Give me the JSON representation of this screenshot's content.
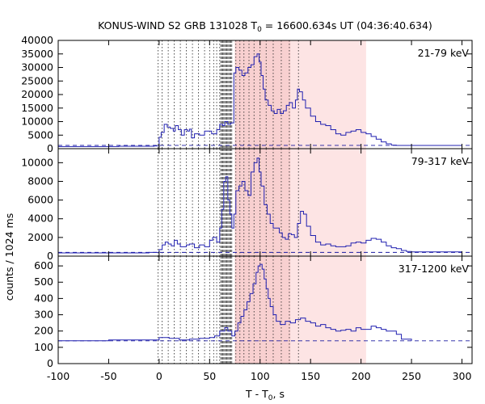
{
  "chart_data": {
    "type": "line",
    "title_main": "KONUS-WIND S2 GRB 131028 T",
    "title_sub": "0",
    "title_rest": " = 16600.634s UT (04:36:40.634)",
    "xlabel_main": "T - T",
    "xlabel_sub": "0",
    "xlabel_rest": ", s",
    "ylabel": "counts / 1024 ms",
    "xlim": [
      -100,
      310
    ],
    "x_ticks": [
      -100,
      -50,
      0,
      50,
      100,
      150,
      200,
      250,
      300
    ],
    "shaded_interval": [
      75,
      205
    ],
    "shaded_interval_dense": [
      75,
      130
    ],
    "dense_lines_range": [
      61,
      72
    ],
    "dotted_lines_x": [
      -1,
      3,
      9,
      15,
      21,
      27,
      33,
      39,
      45,
      50,
      54,
      57,
      60,
      76,
      80,
      84,
      89,
      94,
      100,
      106,
      113,
      121,
      129,
      138
    ],
    "colors": {
      "line": "#2020b0",
      "shade": "#fde4e4",
      "shade_dense": "#f8d0d0",
      "dash": "#1a1aa0"
    },
    "panels": [
      {
        "band": "21-79 keV",
        "ylim": [
          0,
          40000
        ],
        "y_ticks": [
          0,
          5000,
          10000,
          15000,
          20000,
          25000,
          30000,
          35000,
          40000
        ],
        "background": 1200,
        "x": [
          -100,
          -40,
          -5,
          0,
          2,
          5,
          8,
          11,
          14,
          16,
          19,
          22,
          25,
          28,
          30,
          32,
          35,
          40,
          45,
          52,
          57,
          60,
          63,
          65,
          68,
          71,
          74,
          76,
          79,
          82,
          85,
          88,
          91,
          94,
          97,
          99,
          101,
          103,
          105,
          108,
          111,
          114,
          117,
          120,
          123,
          126,
          129,
          132,
          135,
          137,
          139,
          142,
          145,
          150,
          155,
          160,
          165,
          170,
          175,
          180,
          185,
          190,
          195,
          200,
          205,
          210,
          215,
          220,
          225,
          230,
          235,
          240,
          245,
          250,
          260,
          300
        ],
        "values": [
          800,
          900,
          1000,
          4200,
          6000,
          9000,
          8000,
          7500,
          6500,
          8500,
          7000,
          5000,
          7000,
          6500,
          7200,
          4000,
          5500,
          5000,
          6500,
          5500,
          7000,
          9000,
          8500,
          10000,
          9000,
          9500,
          28000,
          30000,
          29000,
          27000,
          28000,
          30000,
          31000,
          34000,
          35000,
          32000,
          27000,
          22000,
          18000,
          16000,
          14000,
          13000,
          14500,
          13000,
          14000,
          16000,
          17000,
          15000,
          18000,
          22000,
          21000,
          18000,
          15000,
          12000,
          10000,
          9000,
          8500,
          7000,
          5500,
          5000,
          6000,
          6500,
          7000,
          6000,
          5500,
          4500,
          3500,
          2500,
          1800,
          1300,
          1200,
          1200,
          1200,
          1200,
          1200,
          1200
        ]
      },
      {
        "band": "79-317 keV",
        "ylim": [
          0,
          11500
        ],
        "y_ticks": [
          0,
          2000,
          4000,
          6000,
          8000,
          10000
        ],
        "background": 400,
        "x": [
          -100,
          -10,
          0,
          3,
          6,
          9,
          12,
          15,
          18,
          21,
          24,
          27,
          30,
          35,
          40,
          45,
          50,
          53,
          57,
          60,
          62,
          64,
          66,
          68,
          70,
          72,
          74,
          76,
          79,
          82,
          85,
          88,
          91,
          94,
          97,
          99,
          101,
          104,
          107,
          110,
          113,
          116,
          119,
          122,
          125,
          128,
          131,
          134,
          137,
          140,
          143,
          146,
          150,
          155,
          160,
          165,
          170,
          175,
          180,
          185,
          190,
          195,
          200,
          205,
          210,
          215,
          220,
          225,
          230,
          235,
          240,
          245,
          250,
          300
        ],
        "values": [
          350,
          400,
          700,
          1200,
          1500,
          1300,
          1100,
          1700,
          1300,
          1000,
          1000,
          1200,
          1300,
          900,
          1200,
          1000,
          1700,
          2000,
          1500,
          3000,
          5000,
          8000,
          8500,
          6000,
          4500,
          3000,
          4500,
          7000,
          7500,
          8000,
          7000,
          6500,
          9000,
          10000,
          10500,
          9000,
          7500,
          5500,
          4500,
          3500,
          3000,
          3000,
          2500,
          2000,
          1800,
          2400,
          2300,
          2000,
          3500,
          4800,
          4500,
          3200,
          2200,
          1500,
          1200,
          1300,
          1100,
          1000,
          1000,
          1100,
          1400,
          1500,
          1400,
          1700,
          1900,
          1800,
          1500,
          1100,
          900,
          800,
          600,
          500,
          450,
          400
        ]
      },
      {
        "band": "317-1200 keV",
        "ylim": [
          0,
          660
        ],
        "y_ticks": [
          0,
          100,
          200,
          300,
          400,
          500,
          600
        ],
        "background": 140,
        "x": [
          -100,
          -50,
          0,
          10,
          20,
          30,
          40,
          50,
          55,
          60,
          65,
          68,
          72,
          75,
          78,
          81,
          84,
          87,
          90,
          93,
          96,
          98,
          100,
          102,
          104,
          106,
          108,
          110,
          113,
          116,
          120,
          125,
          130,
          135,
          140,
          145,
          150,
          155,
          160,
          165,
          170,
          175,
          180,
          185,
          190,
          195,
          200,
          205,
          210,
          215,
          220,
          225,
          230,
          235,
          240,
          250
        ],
        "values": [
          140,
          145,
          160,
          155,
          145,
          150,
          155,
          160,
          170,
          200,
          220,
          200,
          170,
          200,
          250,
          290,
          330,
          380,
          430,
          490,
          560,
          600,
          610,
          580,
          520,
          460,
          400,
          350,
          300,
          260,
          240,
          260,
          250,
          270,
          280,
          260,
          250,
          230,
          240,
          220,
          210,
          200,
          205,
          210,
          200,
          220,
          210,
          210,
          230,
          220,
          210,
          200,
          200,
          180,
          150,
          140
        ]
      }
    ]
  }
}
